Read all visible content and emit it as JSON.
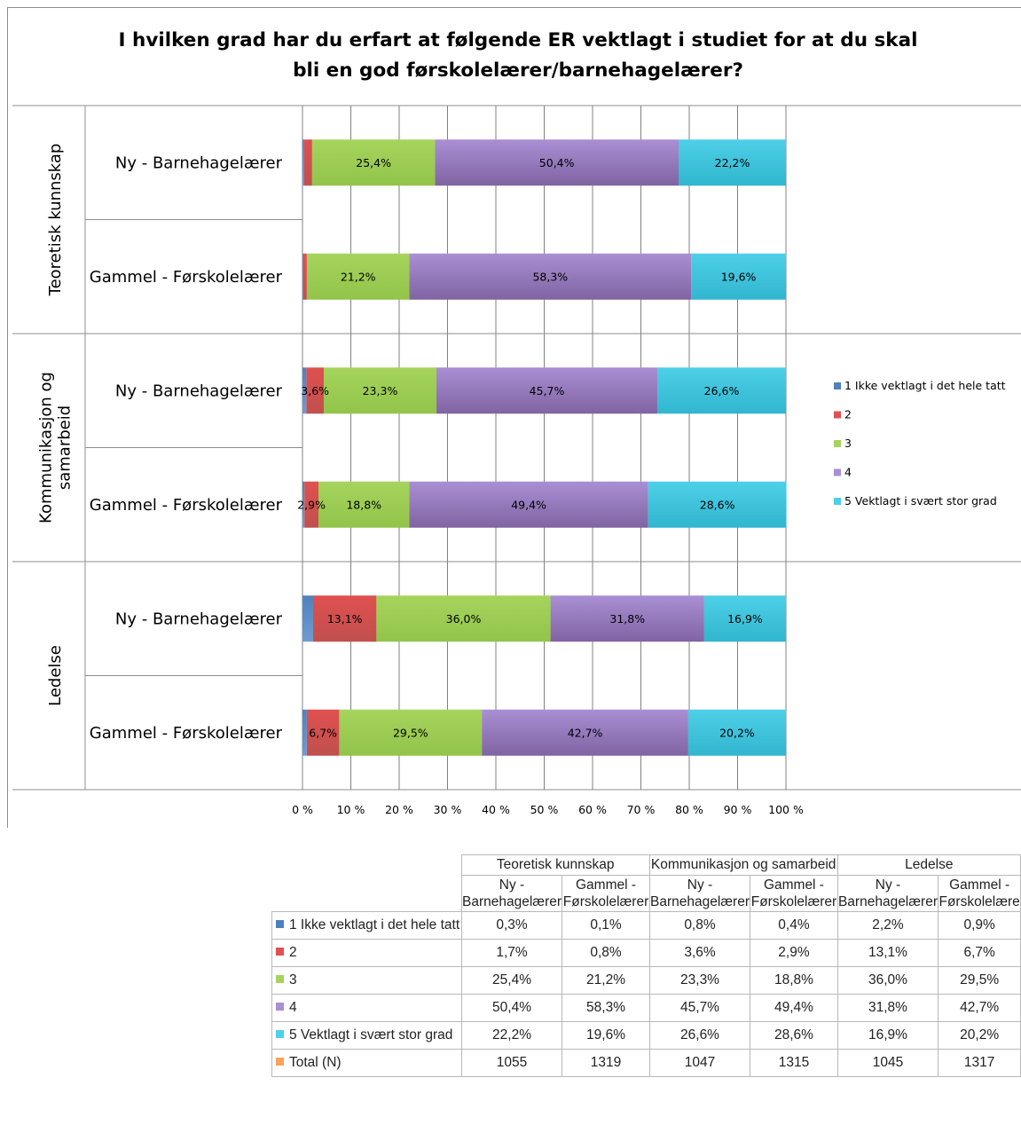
{
  "chart_data": {
    "type": "bar",
    "orientation": "horizontal",
    "stacked": "percent",
    "title_lines": [
      "I hvilken grad har du erfart at følgende ER vektlagt i studiet for at du skal",
      "bli en god førskolelærer/barnehagelærer?"
    ],
    "groups": [
      {
        "name": "Teoretisk kunnskap",
        "categories": [
          "Ny - Barnehagelærer",
          "Gammel - Førskolelærer"
        ]
      },
      {
        "name_lines": [
          "Kommunikasjon og",
          "samarbeid"
        ],
        "categories": [
          "Ny - Barnehagelærer",
          "Gammel - Førskolelærer"
        ]
      },
      {
        "name": "Ledelse",
        "categories": [
          "Ny - Barnehagelærer",
          "Gammel - Førskolelærer"
        ]
      }
    ],
    "series": [
      {
        "name": "1 Ikke vektlagt i det hele tatt",
        "color": "#4f81bd",
        "gradient_end": "#6f9bd1",
        "values": [
          0.3,
          0.1,
          0.8,
          0.4,
          2.2,
          0.9
        ],
        "labels": [
          "",
          "",
          "",
          "",
          "",
          ""
        ]
      },
      {
        "name": "2",
        "color": "#e05050",
        "gradient_end": "#c0504d",
        "values": [
          1.7,
          0.8,
          3.6,
          2.9,
          13.1,
          6.7
        ],
        "labels": [
          "",
          "",
          "3,6%",
          "2,9%",
          "13,1%",
          "6,7%"
        ]
      },
      {
        "name": "3",
        "color": "#a6d45c",
        "gradient_end": "#92c44a",
        "values": [
          25.4,
          21.2,
          23.3,
          18.8,
          36.0,
          29.5
        ],
        "labels": [
          "25,4%",
          "21,2%",
          "23,3%",
          "18,8%",
          "36,0%",
          "29,5%"
        ]
      },
      {
        "name": "4",
        "color": "#a98fd4",
        "gradient_end": "#8064a2",
        "values": [
          50.4,
          58.3,
          45.7,
          49.4,
          31.8,
          42.7
        ],
        "labels": [
          "50,4%",
          "58,3%",
          "45,7%",
          "49,4%",
          "31,8%",
          "42,7%"
        ]
      },
      {
        "name": "5 Vektlagt i svært stor grad",
        "color": "#4dd0e8",
        "gradient_end": "#31b6cf",
        "values": [
          22.2,
          19.6,
          26.6,
          28.6,
          16.9,
          20.2
        ],
        "labels": [
          "22,2%",
          "19,6%",
          "26,6%",
          "28,6%",
          "16,9%",
          "20,2%"
        ]
      }
    ],
    "x_ticks": [
      "0 %",
      "10 %",
      "20 %",
      "30 %",
      "40 %",
      "50 %",
      "60 %",
      "70 %",
      "80 %",
      "90 %",
      "100 %"
    ],
    "xlim": [
      0,
      100
    ],
    "grid": true,
    "legend_position": "right"
  },
  "table": {
    "groups": [
      "Teoretisk kunnskap",
      "Kommunikasjon og samarbeid",
      "Ledelse"
    ],
    "subheaders": [
      [
        "Ny -",
        "Barnehagelærer"
      ],
      [
        "Gammel -",
        "Førskolelærer"
      ],
      [
        "Ny -",
        "Barnehagelærer"
      ],
      [
        "Gammel -",
        "Førskolelærer"
      ],
      [
        "Ny -",
        "Barnehagelærer"
      ],
      [
        "Gammel -",
        "Førskolelære"
      ]
    ],
    "rows": [
      {
        "label": "1 Ikke vektlagt i det hele tatt",
        "color": "#4f81bd",
        "values": [
          "0,3%",
          "0,1%",
          "0,8%",
          "0,4%",
          "2,2%",
          "0,9%"
        ]
      },
      {
        "label": "2",
        "color": "#e05050",
        "values": [
          "1,7%",
          "0,8%",
          "3,6%",
          "2,9%",
          "13,1%",
          "6,7%"
        ]
      },
      {
        "label": "3",
        "color": "#a6d45c",
        "values": [
          "25,4%",
          "21,2%",
          "23,3%",
          "18,8%",
          "36,0%",
          "29,5%"
        ]
      },
      {
        "label": "4",
        "color": "#a98fd4",
        "values": [
          "50,4%",
          "58,3%",
          "45,7%",
          "49,4%",
          "31,8%",
          "42,7%"
        ]
      },
      {
        "label": "5 Vektlagt i svært stor grad",
        "color": "#4dd0e8",
        "values": [
          "22,2%",
          "19,6%",
          "26,6%",
          "28,6%",
          "16,9%",
          "20,2%"
        ]
      },
      {
        "label": "Total (N)",
        "color": "#f7a35c",
        "values": [
          "1055",
          "1319",
          "1047",
          "1315",
          "1045",
          "1317"
        ]
      }
    ]
  }
}
